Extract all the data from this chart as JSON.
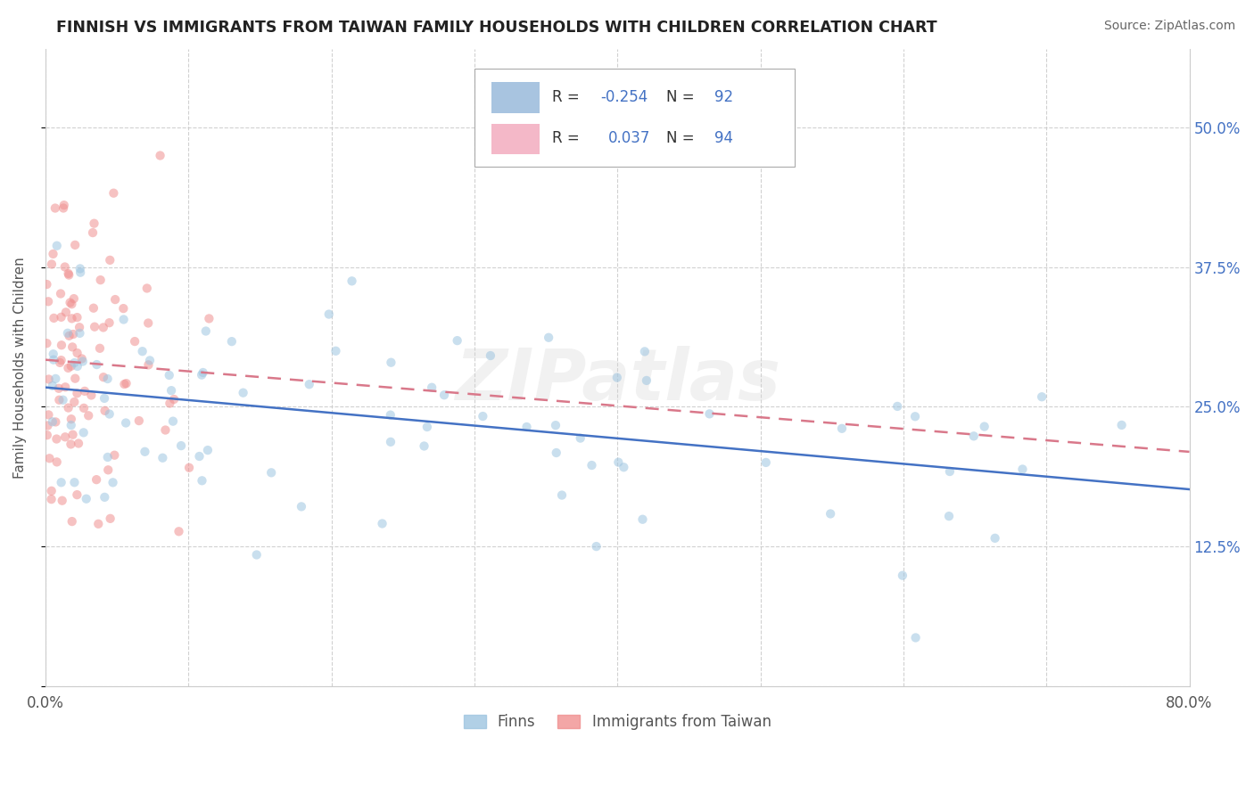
{
  "title": "FINNISH VS IMMIGRANTS FROM TAIWAN FAMILY HOUSEHOLDS WITH CHILDREN CORRELATION CHART",
  "source": "Source: ZipAtlas.com",
  "ylabel": "Family Households with Children",
  "xlim": [
    0.0,
    80.0
  ],
  "ylim": [
    0.0,
    57.0
  ],
  "yticks": [
    0.0,
    12.5,
    25.0,
    37.5,
    50.0
  ],
  "right_yticklabels": [
    "",
    "12.5%",
    "25.0%",
    "37.5%",
    "50.0%"
  ],
  "xticks": [
    0.0,
    10.0,
    20.0,
    30.0,
    40.0,
    50.0,
    60.0,
    70.0,
    80.0
  ],
  "dot_color_finns": "#9ec5e0",
  "dot_color_taiwan": "#f09090",
  "dot_alpha_finns": 0.55,
  "dot_alpha_taiwan": 0.55,
  "dot_size": 55,
  "trend_color_finns": "#4472c4",
  "trend_color_taiwan": "#d9788a",
  "trend_lw": 1.8,
  "grid_color": "#cccccc",
  "background_color": "#ffffff",
  "legend_box_color": "#a8c4e0",
  "legend_box_color2": "#f4b8c8",
  "legend_R1": "-0.254",
  "legend_N1": "92",
  "legend_R2": "0.037",
  "legend_N2": "94",
  "watermark": "ZIPatlas"
}
